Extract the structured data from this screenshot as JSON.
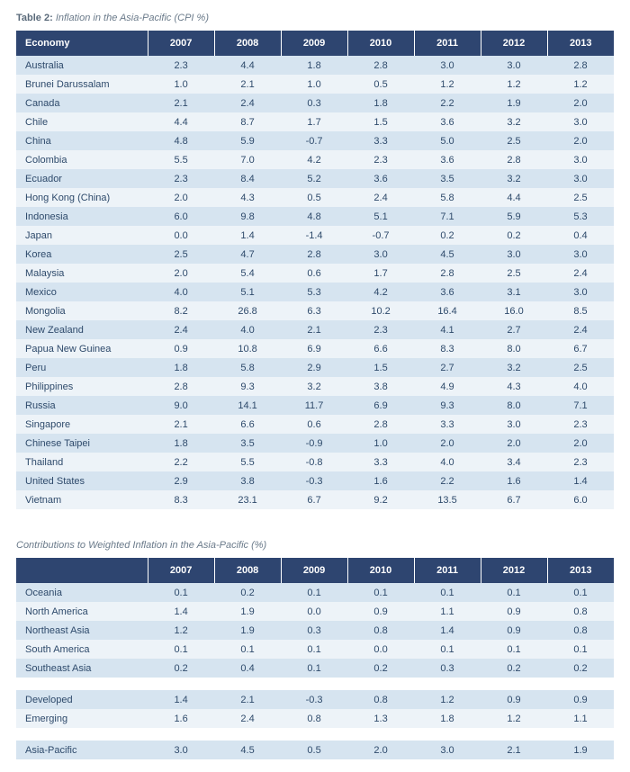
{
  "colors": {
    "header_bg": "#2e4570",
    "header_fg": "#ffffff",
    "row_odd_bg": "#d6e4f0",
    "row_even_bg": "#edf3f8",
    "text": "#2e4a6b",
    "caption": "#6a7a8a",
    "page_bg": "#ffffff"
  },
  "typography": {
    "body_font": "Segoe UI / Helvetica Neue",
    "body_size_pt": 8,
    "caption_size_pt": 8,
    "header_weight": 600
  },
  "table1": {
    "caption_lead": "Table 2:",
    "caption_rest": "Inflation in the Asia-Pacific (CPI %)",
    "columns": [
      "Economy",
      "2007",
      "2008",
      "2009",
      "2010",
      "2011",
      "2012",
      "2013"
    ],
    "rows": [
      [
        "Australia",
        "2.3",
        "4.4",
        "1.8",
        "2.8",
        "3.0",
        "3.0",
        "2.8"
      ],
      [
        "Brunei Darussalam",
        "1.0",
        "2.1",
        "1.0",
        "0.5",
        "1.2",
        "1.2",
        "1.2"
      ],
      [
        "Canada",
        "2.1",
        "2.4",
        "0.3",
        "1.8",
        "2.2",
        "1.9",
        "2.0"
      ],
      [
        "Chile",
        "4.4",
        "8.7",
        "1.7",
        "1.5",
        "3.6",
        "3.2",
        "3.0"
      ],
      [
        "China",
        "4.8",
        "5.9",
        "-0.7",
        "3.3",
        "5.0",
        "2.5",
        "2.0"
      ],
      [
        "Colombia",
        "5.5",
        "7.0",
        "4.2",
        "2.3",
        "3.6",
        "2.8",
        "3.0"
      ],
      [
        "Ecuador",
        "2.3",
        "8.4",
        "5.2",
        "3.6",
        "3.5",
        "3.2",
        "3.0"
      ],
      [
        "Hong Kong (China)",
        "2.0",
        "4.3",
        "0.5",
        "2.4",
        "5.8",
        "4.4",
        "2.5"
      ],
      [
        "Indonesia",
        "6.0",
        "9.8",
        "4.8",
        "5.1",
        "7.1",
        "5.9",
        "5.3"
      ],
      [
        "Japan",
        "0.0",
        "1.4",
        "-1.4",
        "-0.7",
        "0.2",
        "0.2",
        "0.4"
      ],
      [
        "Korea",
        "2.5",
        "4.7",
        "2.8",
        "3.0",
        "4.5",
        "3.0",
        "3.0"
      ],
      [
        "Malaysia",
        "2.0",
        "5.4",
        "0.6",
        "1.7",
        "2.8",
        "2.5",
        "2.4"
      ],
      [
        "Mexico",
        "4.0",
        "5.1",
        "5.3",
        "4.2",
        "3.6",
        "3.1",
        "3.0"
      ],
      [
        "Mongolia",
        "8.2",
        "26.8",
        "6.3",
        "10.2",
        "16.4",
        "16.0",
        "8.5"
      ],
      [
        "New Zealand",
        "2.4",
        "4.0",
        "2.1",
        "2.3",
        "4.1",
        "2.7",
        "2.4"
      ],
      [
        "Papua New Guinea",
        "0.9",
        "10.8",
        "6.9",
        "6.6",
        "8.3",
        "8.0",
        "6.7"
      ],
      [
        "Peru",
        "1.8",
        "5.8",
        "2.9",
        "1.5",
        "2.7",
        "3.2",
        "2.5"
      ],
      [
        "Philippines",
        "2.8",
        "9.3",
        "3.2",
        "3.8",
        "4.9",
        "4.3",
        "4.0"
      ],
      [
        "Russia",
        "9.0",
        "14.1",
        "11.7",
        "6.9",
        "9.3",
        "8.0",
        "7.1"
      ],
      [
        "Singapore",
        "2.1",
        "6.6",
        "0.6",
        "2.8",
        "3.3",
        "3.0",
        "2.3"
      ],
      [
        "Chinese Taipei",
        "1.8",
        "3.5",
        "-0.9",
        "1.0",
        "2.0",
        "2.0",
        "2.0"
      ],
      [
        "Thailand",
        "2.2",
        "5.5",
        "-0.8",
        "3.3",
        "4.0",
        "3.4",
        "2.3"
      ],
      [
        "United States",
        "2.9",
        "3.8",
        "-0.3",
        "1.6",
        "2.2",
        "1.6",
        "1.4"
      ],
      [
        "Vietnam",
        "8.3",
        "23.1",
        "6.7",
        "9.2",
        "13.5",
        "6.7",
        "6.0"
      ]
    ]
  },
  "table2": {
    "caption": "Contributions to Weighted Inflation in the Asia-Pacific (%)",
    "columns": [
      "",
      "2007",
      "2008",
      "2009",
      "2010",
      "2011",
      "2012",
      "2013"
    ],
    "groups": [
      [
        [
          "Oceania",
          "0.1",
          "0.2",
          "0.1",
          "0.1",
          "0.1",
          "0.1",
          "0.1"
        ],
        [
          "North America",
          "1.4",
          "1.9",
          "0.0",
          "0.9",
          "1.1",
          "0.9",
          "0.8"
        ],
        [
          "Northeast Asia",
          "1.2",
          "1.9",
          "0.3",
          "0.8",
          "1.4",
          "0.9",
          "0.8"
        ],
        [
          "South America",
          "0.1",
          "0.1",
          "0.1",
          "0.0",
          "0.1",
          "0.1",
          "0.1"
        ],
        [
          "Southeast Asia",
          "0.2",
          "0.4",
          "0.1",
          "0.2",
          "0.3",
          "0.2",
          "0.2"
        ]
      ],
      [
        [
          "Developed",
          "1.4",
          "2.1",
          "-0.3",
          "0.8",
          "1.2",
          "0.9",
          "0.9"
        ],
        [
          "Emerging",
          "1.6",
          "2.4",
          "0.8",
          "1.3",
          "1.8",
          "1.2",
          "1.1"
        ]
      ],
      [
        [
          "Asia-Pacific",
          "3.0",
          "4.5",
          "0.5",
          "2.0",
          "3.0",
          "2.1",
          "1.9"
        ]
      ]
    ]
  }
}
